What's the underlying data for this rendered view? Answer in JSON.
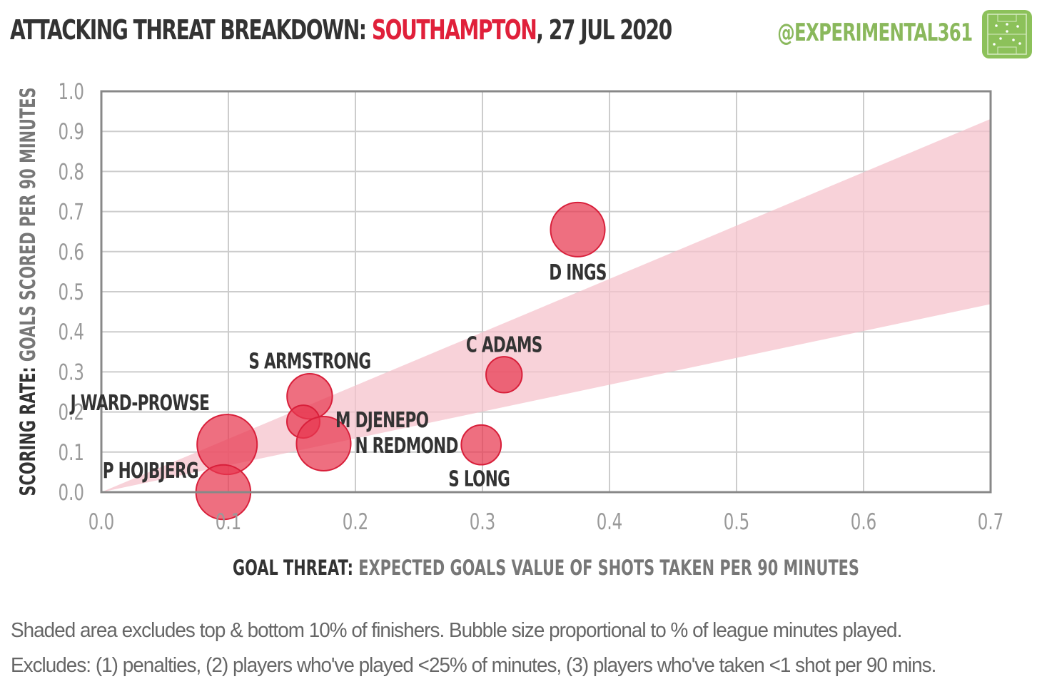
{
  "header": {
    "title_prefix": "ATTACKING THREAT BREAKDOWN:",
    "team": "SOUTHAMPTON",
    "date_suffix": ", 27 JUL 2020",
    "handle": "@EXPERIMENTAL361",
    "logo_icon": "pitch-logo-icon"
  },
  "chart_data": {
    "type": "scatter",
    "xlabel_bold": "GOAL THREAT:",
    "xlabel": "EXPECTED GOALS VALUE OF SHOTS TAKEN PER 90 MINUTES",
    "ylabel_bold": "SCORING RATE:",
    "ylabel": "GOALS SCORED PER 90 MINUTES",
    "xlim": [
      0,
      0.7
    ],
    "ylim": [
      0,
      1.0
    ],
    "x_ticks": [
      "0.0",
      "0.1",
      "0.2",
      "0.3",
      "0.4",
      "0.5",
      "0.6",
      "0.7"
    ],
    "y_ticks": [
      "0.0",
      "0.1",
      "0.2",
      "0.3",
      "0.4",
      "0.5",
      "0.6",
      "0.7",
      "0.8",
      "0.9",
      "1.0"
    ],
    "grid": true,
    "band": {
      "upper_slope": 1.33,
      "lower_slope": 0.67
    },
    "bubble_color": "#e8384f",
    "band_color": "#f6c3cc",
    "points": [
      {
        "name": "D INGS",
        "x": 0.375,
        "y": 0.655,
        "minutes_share": 0.82
      },
      {
        "name": "C ADAMS",
        "x": 0.317,
        "y": 0.293,
        "minutes_share": 0.36
      },
      {
        "name": "S ARMSTRONG",
        "x": 0.164,
        "y": 0.239,
        "minutes_share": 0.57
      },
      {
        "name": "M DJENEPO",
        "x": 0.159,
        "y": 0.176,
        "minutes_share": 0.3
      },
      {
        "name": "N REDMOND",
        "x": 0.175,
        "y": 0.121,
        "minutes_share": 0.82
      },
      {
        "name": "J WARD-PROWSE",
        "x": 0.099,
        "y": 0.119,
        "minutes_share": 1.0
      },
      {
        "name": "S LONG",
        "x": 0.299,
        "y": 0.118,
        "minutes_share": 0.44
      },
      {
        "name": "P HOJBJERG",
        "x": 0.096,
        "y": 0.0,
        "minutes_share": 0.83
      }
    ]
  },
  "footnotes": [
    "Shaded area excludes top & bottom 10% of finishers. Bubble size proportional to % of league minutes played.",
    "Excludes: (1) penalties, (2) players who've played <25% of minutes, (3) players who've taken <1 shot per 90 mins."
  ]
}
